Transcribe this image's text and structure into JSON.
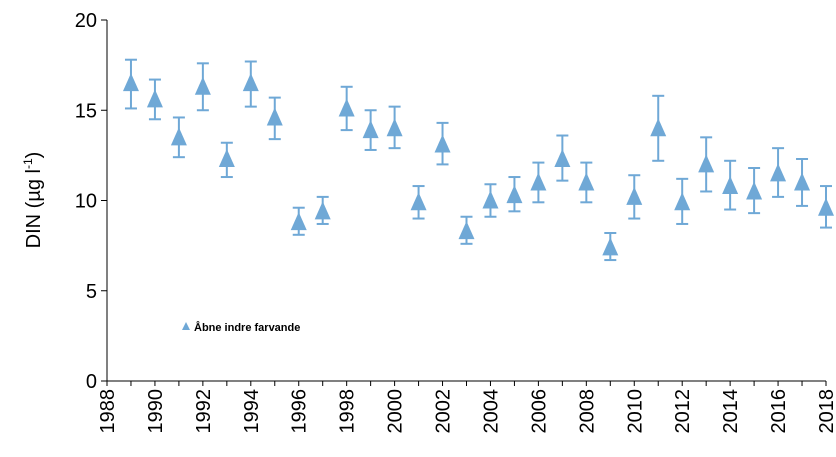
{
  "chart_data": {
    "type": "scatter",
    "title": "",
    "xlabel": "",
    "ylabel": "DIN (µg l",
    "ylabel_superscript": "-1",
    "ylabel_close": ")",
    "xlim": [
      1988,
      2018
    ],
    "ylim": [
      0,
      20
    ],
    "x_ticks": [
      "1988",
      "1990",
      "1992",
      "1994",
      "1996",
      "1998",
      "2000",
      "2002",
      "2004",
      "2006",
      "2008",
      "2010",
      "2012",
      "2014",
      "2016",
      "2018"
    ],
    "y_ticks": [
      "0",
      "5",
      "10",
      "15",
      "20"
    ],
    "grid": false,
    "legend_position": "lower-left",
    "marker": "triangle",
    "color": "#6fa8d6",
    "series": [
      {
        "name": "Åbne indre farvande",
        "x": [
          1989,
          1990,
          1991,
          1992,
          1993,
          1994,
          1995,
          1996,
          1997,
          1998,
          1999,
          2000,
          2001,
          2002,
          2003,
          2004,
          2005,
          2006,
          2007,
          2008,
          2009,
          2010,
          2011,
          2012,
          2013,
          2014,
          2015,
          2016,
          2017,
          2018
        ],
        "y": [
          16.5,
          15.6,
          13.5,
          16.3,
          12.3,
          16.5,
          14.6,
          8.8,
          9.4,
          15.1,
          13.9,
          14.0,
          9.9,
          13.1,
          8.3,
          10.0,
          10.3,
          11.0,
          12.3,
          11.0,
          7.4,
          10.2,
          14.0,
          9.9,
          12.0,
          10.8,
          10.5,
          11.5,
          11.0,
          9.6
        ],
        "y_low": [
          15.1,
          14.5,
          12.4,
          15.0,
          11.3,
          15.2,
          13.4,
          8.1,
          8.7,
          13.9,
          12.8,
          12.9,
          9.0,
          12.0,
          7.6,
          9.1,
          9.4,
          9.9,
          11.1,
          9.9,
          6.7,
          9.0,
          12.2,
          8.7,
          10.5,
          9.5,
          9.3,
          10.2,
          9.7,
          8.5
        ],
        "y_high": [
          17.8,
          16.7,
          14.6,
          17.6,
          13.2,
          17.7,
          15.7,
          9.6,
          10.2,
          16.3,
          15.0,
          15.2,
          10.8,
          14.3,
          9.1,
          10.9,
          11.3,
          12.1,
          13.6,
          12.1,
          8.2,
          11.4,
          15.8,
          11.2,
          13.5,
          12.2,
          11.8,
          12.9,
          12.3,
          10.8
        ]
      }
    ]
  }
}
